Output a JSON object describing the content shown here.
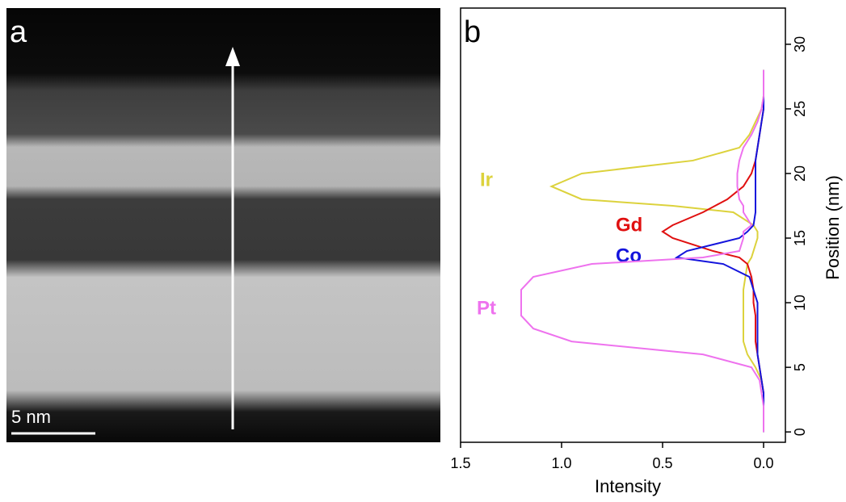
{
  "panel_a": {
    "label": "a",
    "scale_bar": "5 nm"
  },
  "chart_data": {
    "type": "line",
    "orientation": "vertical",
    "panel_label": "b",
    "x_label": "Intensity",
    "y_label": "Position (nm)",
    "x": [
      0,
      1,
      2,
      3,
      4,
      5,
      6,
      7,
      8,
      9,
      10,
      11,
      12,
      13,
      13.5,
      14,
      15,
      15.5,
      16,
      17,
      17.5,
      18,
      19,
      20,
      21,
      22,
      23,
      24,
      25,
      26,
      27,
      28
    ],
    "series": [
      {
        "name": "Ir",
        "color": "#dcd23c",
        "values": [
          0,
          0,
          0,
          0,
          0.01,
          0.04,
          0.08,
          0.1,
          0.1,
          0.1,
          0.1,
          0.1,
          0.09,
          0.08,
          0.06,
          0.05,
          0.03,
          0.03,
          0.05,
          0.15,
          0.45,
          0.9,
          1.05,
          0.9,
          0.35,
          0.12,
          0.07,
          0.04,
          0.01,
          0,
          0,
          0
        ]
      },
      {
        "name": "Gd",
        "color": "#e01010",
        "values": [
          0,
          0,
          0,
          0,
          0.01,
          0.02,
          0.03,
          0.04,
          0.04,
          0.04,
          0.05,
          0.05,
          0.06,
          0.08,
          0.12,
          0.25,
          0.45,
          0.5,
          0.45,
          0.3,
          0.24,
          0.18,
          0.1,
          0.06,
          0.04,
          0.03,
          0.02,
          0.01,
          0,
          0,
          0,
          0
        ]
      },
      {
        "name": "Co",
        "color": "#1414dc",
        "values": [
          0,
          0,
          0,
          0,
          0.01,
          0.02,
          0.03,
          0.03,
          0.03,
          0.03,
          0.03,
          0.05,
          0.07,
          0.2,
          0.43,
          0.38,
          0.12,
          0.08,
          0.05,
          0.04,
          0.04,
          0.04,
          0.04,
          0.04,
          0.04,
          0.03,
          0.02,
          0.01,
          0,
          0,
          0,
          0
        ]
      },
      {
        "name": "Pt",
        "color": "#ee72ee",
        "values": [
          0,
          0,
          0,
          0.01,
          0.02,
          0.06,
          0.3,
          0.95,
          1.14,
          1.2,
          1.2,
          1.2,
          1.14,
          0.85,
          0.3,
          0.12,
          0.1,
          0.1,
          0.06,
          0.1,
          0.1,
          0.12,
          0.13,
          0.13,
          0.12,
          0.1,
          0.06,
          0.03,
          0.01,
          0,
          0,
          0
        ]
      }
    ],
    "xlim": [
      1.5,
      -0.108
    ],
    "xticks": [
      {
        "value": 1.5,
        "label": "1.5"
      },
      {
        "value": 1.0,
        "label": "1.0"
      },
      {
        "value": 0.5,
        "label": "0.5"
      },
      {
        "value": 0,
        "label": "0.0"
      }
    ],
    "ylim": [
      -0.8,
      32.8
    ],
    "yticks": [
      0,
      5,
      10,
      15,
      20,
      25,
      30
    ]
  }
}
